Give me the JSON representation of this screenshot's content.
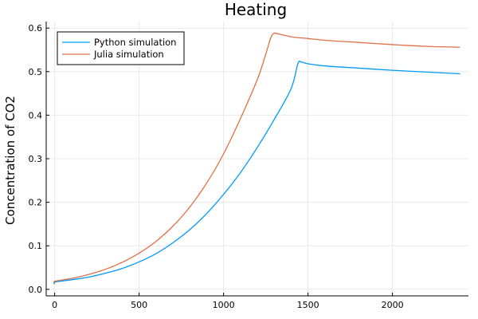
{
  "chart_data": {
    "type": "line",
    "title": "Heating",
    "xlabel": "",
    "ylabel": "Concentration of CO2",
    "xlim": [
      -50,
      2450
    ],
    "ylim": [
      -0.015,
      0.615
    ],
    "xticks": [
      0,
      500,
      1000,
      1500,
      2000
    ],
    "xtick_labels": [
      "0",
      "500",
      "1000",
      "1500",
      "2000"
    ],
    "yticks": [
      0.0,
      0.1,
      0.2,
      0.3,
      0.4,
      0.5,
      0.6
    ],
    "ytick_labels": [
      "0.0",
      "0.1",
      "0.2",
      "0.3",
      "0.4",
      "0.5",
      "0.6"
    ],
    "grid": true,
    "legend_position": "top-left",
    "series": [
      {
        "name": "Python simulation",
        "color": "#009AFA",
        "x": [
          0,
          5,
          100,
          200,
          300,
          400,
          500,
          600,
          700,
          800,
          900,
          1000,
          1100,
          1200,
          1300,
          1400,
          1440,
          1460,
          1500,
          1600,
          1800,
          2000,
          2200,
          2400
        ],
        "y": [
          0.012,
          0.017,
          0.022,
          0.028,
          0.037,
          0.048,
          0.063,
          0.082,
          0.107,
          0.137,
          0.174,
          0.218,
          0.268,
          0.326,
          0.39,
          0.461,
          0.518,
          0.522,
          0.518,
          0.513,
          0.508,
          0.503,
          0.499,
          0.495
        ]
      },
      {
        "name": "Julia simulation",
        "color": "#E26F46",
        "x": [
          0,
          5,
          100,
          200,
          300,
          400,
          500,
          600,
          700,
          800,
          900,
          1000,
          1100,
          1200,
          1250,
          1280,
          1300,
          1320,
          1400,
          1500,
          1600,
          1800,
          2000,
          2200,
          2400
        ],
        "y": [
          0.015,
          0.019,
          0.025,
          0.034,
          0.046,
          0.062,
          0.083,
          0.11,
          0.145,
          0.189,
          0.244,
          0.311,
          0.392,
          0.482,
          0.54,
          0.578,
          0.588,
          0.587,
          0.58,
          0.576,
          0.572,
          0.567,
          0.562,
          0.558,
          0.556
        ]
      }
    ]
  }
}
